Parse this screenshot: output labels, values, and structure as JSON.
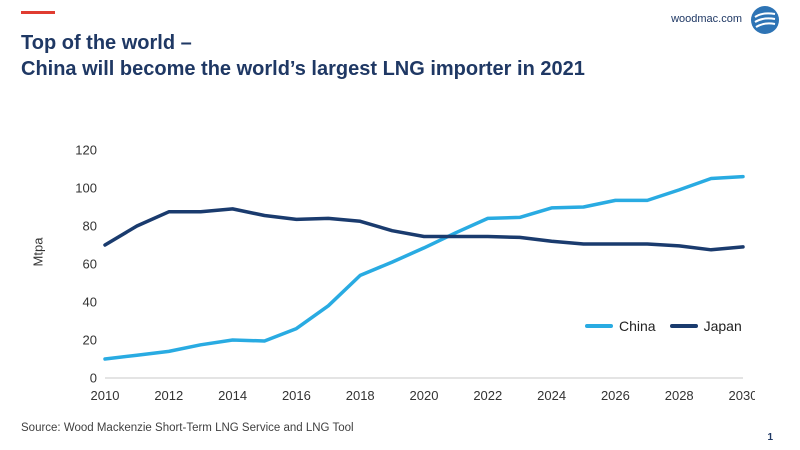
{
  "header": {
    "url": "woodmac.com",
    "logo_color": "#2e74b5",
    "accent_color": "#e03c31"
  },
  "title": {
    "line1": "Top of the world –",
    "line2": "China will become the world’s largest LNG importer in 2021",
    "color": "#1f3864"
  },
  "source": {
    "text": "Source: Wood Mackenzie Short-Term LNG Service and LNG Tool"
  },
  "page_number": "1",
  "chart_data": {
    "type": "line",
    "title": "",
    "xlabel": "",
    "ylabel": "Mtpa",
    "xlim": [
      2010,
      2030
    ],
    "ylim": [
      0,
      120
    ],
    "grid": false,
    "legend_position": "inside-right",
    "xticks": [
      2010,
      2012,
      2014,
      2016,
      2018,
      2020,
      2022,
      2024,
      2026,
      2028,
      2030
    ],
    "yticks": [
      0,
      20,
      40,
      60,
      80,
      100,
      120
    ],
    "x": [
      2010,
      2011,
      2012,
      2013,
      2014,
      2015,
      2016,
      2017,
      2018,
      2019,
      2020,
      2021,
      2022,
      2023,
      2024,
      2025,
      2026,
      2027,
      2028,
      2029,
      2030
    ],
    "series": [
      {
        "name": "China",
        "color": "#29abe2",
        "values": [
          10,
          12,
          14,
          17.5,
          20,
          19.5,
          26,
          38,
          54,
          61,
          68.5,
          76.5,
          84,
          84.5,
          89.5,
          90,
          93.5,
          93.5,
          99,
          105,
          106
        ]
      },
      {
        "name": "Japan",
        "color": "#1a3b6e",
        "values": [
          70,
          80,
          87.5,
          87.5,
          89,
          85.5,
          83.5,
          84,
          82.5,
          77.5,
          74.5,
          74.5,
          74.5,
          74,
          72,
          70.5,
          70.5,
          70.5,
          69.5,
          67.5,
          69
        ]
      }
    ]
  }
}
